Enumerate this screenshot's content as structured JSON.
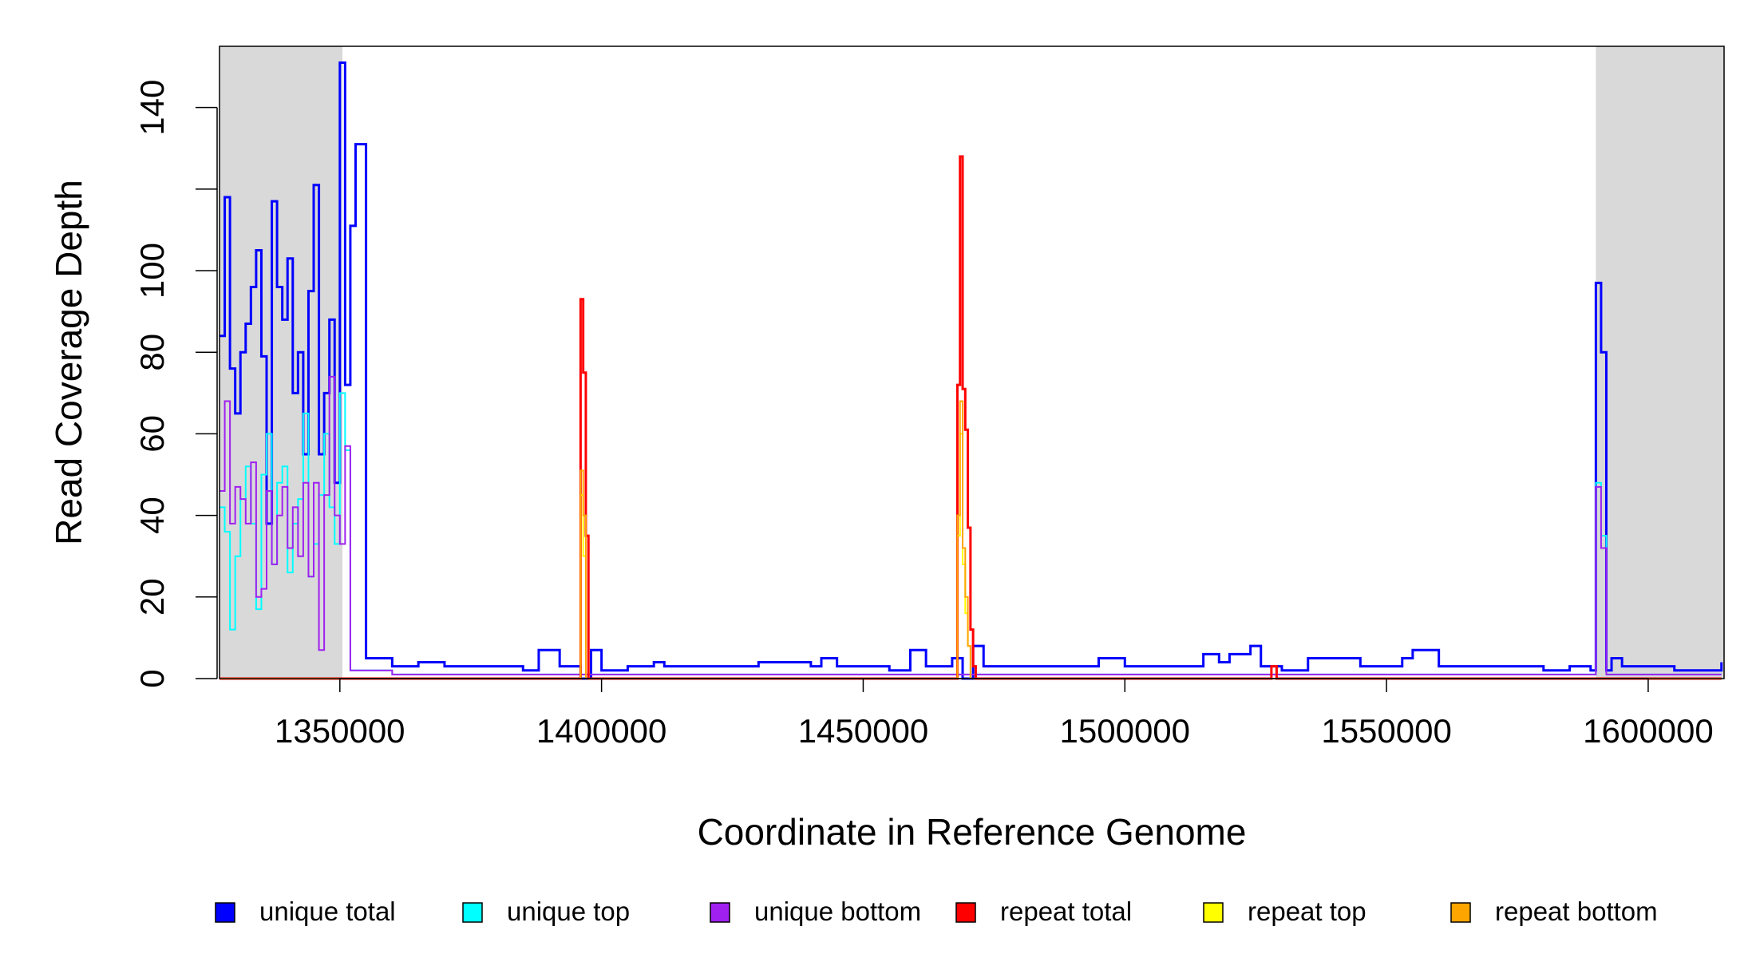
{
  "chart_data": {
    "type": "line",
    "xlabel": "Coordinate in Reference Genome",
    "ylabel": "Read Coverage Depth",
    "xlim": [
      1327000,
      1614500
    ],
    "ylim": [
      0,
      155
    ],
    "x_ticks": [
      1350000,
      1400000,
      1450000,
      1500000,
      1550000,
      1600000
    ],
    "x_tick_labels": [
      "1350000",
      "1400000",
      "1450000",
      "1500000",
      "1550000",
      "1600000"
    ],
    "y_ticks": [
      0,
      20,
      40,
      60,
      80,
      100,
      120,
      140
    ],
    "y_tick_labels": [
      "0",
      "20",
      "40",
      "60",
      "80",
      "100",
      "",
      "140"
    ],
    "shaded_regions": [
      [
        1327000,
        1350500
      ],
      [
        1590000,
        1614500
      ]
    ],
    "shaded_color": "#d9d9d9",
    "legend_position": "bottom",
    "series": [
      {
        "name": "unique total",
        "color": "#0000ff",
        "x": [
          1327000,
          1328000,
          1329000,
          1330000,
          1331000,
          1332000,
          1333000,
          1334000,
          1335000,
          1336000,
          1337000,
          1338000,
          1339000,
          1340000,
          1341000,
          1342000,
          1343000,
          1344000,
          1345000,
          1346000,
          1347000,
          1348000,
          1349000,
          1350000,
          1351000,
          1352000,
          1353000,
          1355000,
          1360000,
          1365000,
          1370000,
          1375000,
          1380000,
          1385000,
          1388000,
          1390000,
          1392000,
          1395000,
          1396000,
          1398000,
          1400000,
          1405000,
          1410000,
          1412000,
          1415000,
          1420000,
          1425000,
          1430000,
          1440000,
          1442000,
          1445000,
          1450000,
          1455000,
          1459000,
          1462000,
          1465000,
          1467000,
          1469000,
          1471000,
          1473000,
          1480000,
          1485000,
          1490000,
          1495000,
          1500000,
          1505000,
          1510000,
          1515000,
          1518000,
          1520000,
          1524000,
          1526000,
          1530000,
          1535000,
          1538000,
          1541000,
          1545000,
          1550000,
          1553000,
          1555000,
          1560000,
          1565000,
          1570000,
          1575000,
          1580000,
          1585000,
          1589000,
          1590000,
          1591000,
          1592000,
          1593000,
          1595000,
          1600000,
          1605000,
          1610000,
          1614000
        ],
        "values": [
          84,
          118,
          76,
          65,
          80,
          87,
          96,
          105,
          79,
          38,
          117,
          96,
          88,
          103,
          70,
          80,
          55,
          95,
          121,
          55,
          70,
          88,
          48,
          151,
          72,
          111,
          131,
          5,
          3,
          4,
          3,
          3,
          3,
          2,
          7,
          7,
          3,
          3,
          0,
          7,
          2,
          3,
          4,
          3,
          3,
          3,
          3,
          4,
          3,
          5,
          3,
          3,
          2,
          7,
          3,
          3,
          5,
          0,
          8,
          3,
          3,
          3,
          3,
          5,
          3,
          3,
          3,
          6,
          4,
          6,
          8,
          3,
          2,
          5,
          5,
          5,
          3,
          3,
          5,
          7,
          3,
          3,
          3,
          3,
          2,
          3,
          2,
          97,
          80,
          2,
          5,
          3,
          3,
          2,
          2,
          4
        ]
      },
      {
        "name": "unique top",
        "color": "#00ffff",
        "x": [
          1327000,
          1328000,
          1329000,
          1330000,
          1331000,
          1332000,
          1333000,
          1334000,
          1335000,
          1336000,
          1337000,
          1338000,
          1339000,
          1340000,
          1341000,
          1342000,
          1343000,
          1344000,
          1345000,
          1346000,
          1347000,
          1348000,
          1349000,
          1350000,
          1351000,
          1352000,
          1360000,
          1380000,
          1400000,
          1420000,
          1440000,
          1460000,
          1480000,
          1500000,
          1520000,
          1540000,
          1560000,
          1580000,
          1589000,
          1590000,
          1591000,
          1592000,
          1600000,
          1614000
        ],
        "values": [
          42,
          36,
          12,
          30,
          44,
          52,
          38,
          17,
          50,
          60,
          28,
          48,
          52,
          26,
          38,
          44,
          65,
          25,
          33,
          45,
          60,
          42,
          33,
          70,
          56,
          2,
          1,
          1,
          1,
          1,
          1,
          1,
          1,
          1,
          1,
          1,
          1,
          1,
          1,
          48,
          35,
          1,
          1,
          1
        ]
      },
      {
        "name": "unique bottom",
        "color": "#a020f0",
        "x": [
          1327000,
          1328000,
          1329000,
          1330000,
          1331000,
          1332000,
          1333000,
          1334000,
          1335000,
          1336000,
          1337000,
          1338000,
          1339000,
          1340000,
          1341000,
          1342000,
          1343000,
          1344000,
          1345000,
          1346000,
          1347000,
          1348000,
          1349000,
          1350000,
          1351000,
          1352000,
          1360000,
          1380000,
          1400000,
          1420000,
          1440000,
          1460000,
          1480000,
          1500000,
          1520000,
          1540000,
          1560000,
          1580000,
          1589000,
          1590000,
          1591000,
          1592000,
          1600000,
          1614000
        ],
        "values": [
          46,
          68,
          38,
          47,
          44,
          38,
          53,
          20,
          22,
          46,
          28,
          40,
          47,
          32,
          42,
          30,
          48,
          25,
          48,
          7,
          45,
          74,
          40,
          33,
          57,
          2,
          1,
          1,
          1,
          1,
          1,
          1,
          1,
          1,
          1,
          1,
          1,
          1,
          1,
          47,
          32,
          1,
          1,
          1
        ]
      },
      {
        "name": "repeat total",
        "color": "#ff0000",
        "x": [
          1327000,
          1395500,
          1396000,
          1396500,
          1397000,
          1397500,
          1468000,
          1468500,
          1469000,
          1469500,
          1470000,
          1470500,
          1471000,
          1471500,
          1528000,
          1528500,
          1529000,
          1614000
        ],
        "values": [
          0,
          0,
          93,
          75,
          35,
          0,
          72,
          128,
          71,
          61,
          37,
          12,
          3,
          0,
          3,
          3,
          0,
          0
        ]
      },
      {
        "name": "repeat top",
        "color": "#ffff00",
        "x": [
          1327000,
          1395500,
          1396000,
          1396500,
          1397000,
          1468000,
          1468500,
          1469000,
          1469500,
          1470000,
          1470500,
          1614000
        ],
        "values": [
          0,
          0,
          45,
          30,
          0,
          35,
          60,
          28,
          16,
          8,
          0,
          0
        ]
      },
      {
        "name": "repeat bottom",
        "color": "#ffa500",
        "x": [
          1327000,
          1395500,
          1396000,
          1396500,
          1397000,
          1468000,
          1468500,
          1469000,
          1469500,
          1470000,
          1470500,
          1614000
        ],
        "values": [
          0,
          0,
          51,
          40,
          0,
          40,
          68,
          32,
          20,
          8,
          0,
          0
        ]
      }
    ]
  }
}
